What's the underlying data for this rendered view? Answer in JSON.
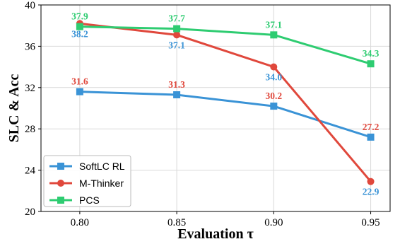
{
  "chart_data": {
    "type": "line",
    "x": [
      0.8,
      0.85,
      0.9,
      0.95
    ],
    "x_tick_labels": [
      "0.80",
      "0.85",
      "0.90",
      "0.95"
    ],
    "y_ticks": [
      20,
      24,
      28,
      32,
      36,
      40
    ],
    "y_tick_labels": [
      "20",
      "24",
      "28",
      "32",
      "36",
      "40"
    ],
    "xlim": [
      0.78,
      0.96
    ],
    "ylim": [
      20,
      40
    ],
    "xlabel": "Evaluation τ",
    "ylabel": "SLC & Acc",
    "grid": true,
    "legend_position": "lower-left",
    "series": [
      {
        "name": "SoftLC RL",
        "color": "#3a93d6",
        "marker": "square",
        "values": [
          31.6,
          31.3,
          30.2,
          27.2
        ],
        "labels": [
          "31.6",
          "31.3",
          "30.2",
          "27.2"
        ]
      },
      {
        "name": "M-Thinker",
        "color": "#e0483c",
        "marker": "circle",
        "values": [
          38.2,
          37.1,
          34.0,
          22.9
        ],
        "labels": [
          "38.2",
          "37.1",
          "34.0",
          "22.9"
        ]
      },
      {
        "name": "PCS",
        "color": "#2ecc71",
        "marker": "square",
        "values": [
          37.9,
          37.7,
          37.1,
          34.3
        ],
        "labels": [
          "37.9",
          "37.7",
          "37.1",
          "34.3"
        ]
      }
    ],
    "data_labels": [
      {
        "x": 0.8,
        "y": 31.6,
        "text": "31.6",
        "color": "#e0483c",
        "pos": "above"
      },
      {
        "x": 0.85,
        "y": 31.3,
        "text": "31.3",
        "color": "#e0483c",
        "pos": "above"
      },
      {
        "x": 0.9,
        "y": 30.2,
        "text": "30.2",
        "color": "#e0483c",
        "pos": "above"
      },
      {
        "x": 0.95,
        "y": 27.2,
        "text": "27.2",
        "color": "#e0483c",
        "pos": "above"
      },
      {
        "x": 0.8,
        "y": 38.2,
        "text": "38.2",
        "color": "#3a93d6",
        "pos": "below"
      },
      {
        "x": 0.85,
        "y": 37.1,
        "text": "37.1",
        "color": "#3a93d6",
        "pos": "below"
      },
      {
        "x": 0.9,
        "y": 34.0,
        "text": "34.0",
        "color": "#3a93d6",
        "pos": "below"
      },
      {
        "x": 0.95,
        "y": 22.9,
        "text": "22.9",
        "color": "#3a93d6",
        "pos": "below"
      },
      {
        "x": 0.8,
        "y": 37.9,
        "text": "37.9",
        "color": "#2ecc71",
        "pos": "above"
      },
      {
        "x": 0.85,
        "y": 37.7,
        "text": "37.7",
        "color": "#2ecc71",
        "pos": "above"
      },
      {
        "x": 0.9,
        "y": 37.1,
        "text": "37.1",
        "color": "#2ecc71",
        "pos": "above"
      },
      {
        "x": 0.95,
        "y": 34.3,
        "text": "34.3",
        "color": "#2ecc71",
        "pos": "above"
      }
    ]
  }
}
